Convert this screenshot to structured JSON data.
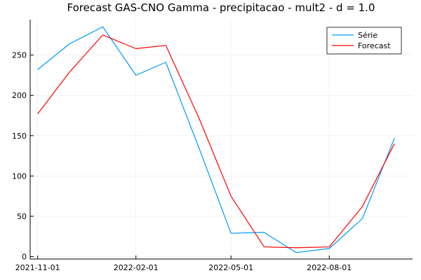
{
  "chart_data": {
    "type": "line",
    "title": "Forecast GAS-CNO Gamma - precipitacao - mult2 - d = 1.0",
    "xlabel": "",
    "ylabel": "",
    "x": [
      "2021-11-01",
      "2021-12-01",
      "2022-01-01",
      "2022-02-01",
      "2022-03-01",
      "2022-04-01",
      "2022-05-01",
      "2022-06-01",
      "2022-07-01",
      "2022-08-01",
      "2022-09-01",
      "2022-10-01"
    ],
    "x_ticks": [
      "2021-11-01",
      "2022-02-01",
      "2022-05-01",
      "2022-08-01"
    ],
    "y_ticks": [
      0,
      50,
      100,
      150,
      200,
      250
    ],
    "xlim": [
      "2021-10-25",
      "2022-10-18"
    ],
    "ylim": [
      -3,
      294
    ],
    "grid": true,
    "legend_position": "top-right",
    "series": [
      {
        "name": "Série",
        "color": "#009AFA",
        "values": [
          232,
          264,
          285,
          225,
          241,
          135,
          29,
          30,
          5,
          10,
          47,
          147
        ]
      },
      {
        "name": "Forecast",
        "color": "#FF0000",
        "values": [
          177,
          229,
          275,
          258,
          262,
          172,
          75,
          12,
          11,
          12,
          62,
          140
        ]
      }
    ]
  }
}
